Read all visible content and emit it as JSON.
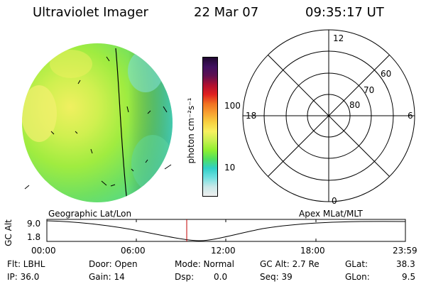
{
  "header": {
    "instrument": "Ultraviolet Imager",
    "date": "22 Mar 07",
    "time": "09:35:17 UT"
  },
  "colorbar": {
    "unit_label": "photon cm⁻²s⁻¹",
    "tick_labels": [
      "100",
      "10"
    ],
    "colors": [
      "#f0f0f0",
      "#c8e8e8",
      "#70e0e0",
      "#30d0c8",
      "#50e060",
      "#90f030",
      "#c8f050",
      "#f8f060",
      "#f8d040",
      "#f8a030",
      "#f07020",
      "#e02020",
      "#b01030",
      "#601050",
      "#401060",
      "#200830"
    ]
  },
  "polar_plot": {
    "mlt_labels": [
      "12",
      "18",
      "6",
      "0"
    ],
    "lat_labels": [
      "60",
      "70",
      "80"
    ]
  },
  "timeline": {
    "y_axis_label": "GC Alt",
    "y_ticks": [
      "9.0",
      "1.8"
    ],
    "left_title": "Geographic Lat/Lon",
    "right_title": "Apex MLat/MLT",
    "x_ticks": [
      "00:00",
      "06:00",
      "12:00",
      "18:00",
      "23:59"
    ]
  },
  "status": {
    "filter": "Flt: LBHL",
    "ip": "IP: 36.0",
    "door": "Door: Open",
    "gain": "Gain: 14",
    "mode": "Mode: Normal",
    "dsp_label": "Dsp:",
    "dsp_value": "0.0",
    "gc_alt": "GC Alt: 2.7 Re",
    "seq": "Seq: 39",
    "glat_label": "GLat:",
    "glat_value": "38.3",
    "glon_label": "GLon:",
    "glon_value": "9.5"
  },
  "colors": {
    "curve_marker": "#c00000",
    "grid": "#000000"
  }
}
